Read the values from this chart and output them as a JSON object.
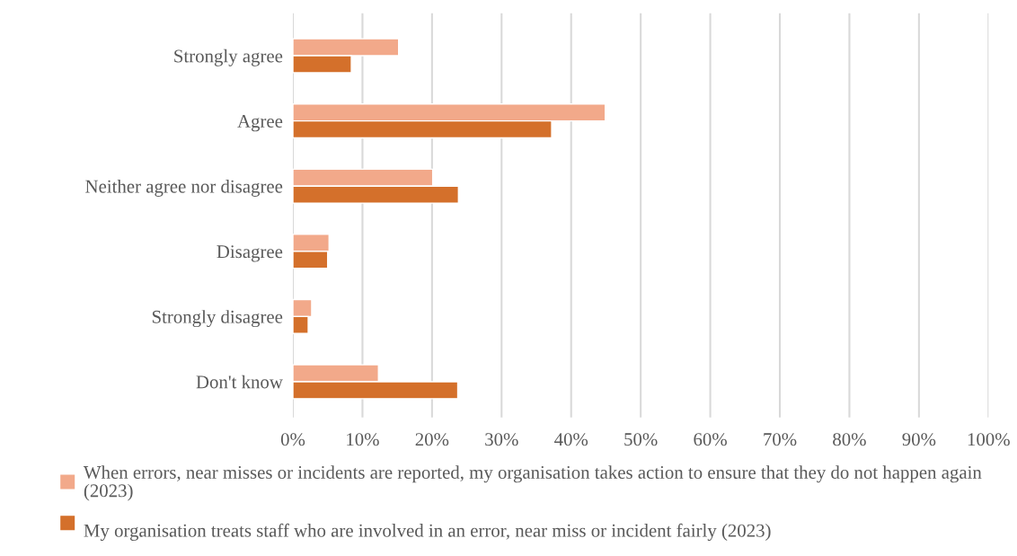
{
  "chart_data": {
    "type": "bar",
    "orientation": "horizontal",
    "categories": [
      "Strongly agree",
      "Agree",
      "Neither agree nor disagree",
      "Disagree",
      "Strongly disagree",
      "Don't know"
    ],
    "series": [
      {
        "name": "When errors, near misses or incidents are reported, my organisation takes action to ensure that they do not happen again (2023)",
        "color": "#f2a98a",
        "values": [
          15.2,
          44.9,
          20.1,
          5.2,
          2.7,
          12.3
        ]
      },
      {
        "name": "My organisation treats staff who are involved in an error, near miss or incident fairly (2023)",
        "color": "#d4702b",
        "values": [
          8.4,
          37.2,
          23.8,
          5.0,
          2.2,
          23.7
        ]
      }
    ],
    "xlim": [
      0,
      100
    ],
    "xticks": [
      {
        "value": 0,
        "label": "0%"
      },
      {
        "value": 10,
        "label": "10%"
      },
      {
        "value": 20,
        "label": "20%"
      },
      {
        "value": 30,
        "label": "30%"
      },
      {
        "value": 40,
        "label": "40%"
      },
      {
        "value": 50,
        "label": "50%"
      },
      {
        "value": 60,
        "label": "60%"
      },
      {
        "value": 70,
        "label": "70%"
      },
      {
        "value": 80,
        "label": "80%"
      },
      {
        "value": 90,
        "label": "90%"
      },
      {
        "value": 100,
        "label": "100%"
      }
    ],
    "grid": "x",
    "legend": "bottom"
  }
}
